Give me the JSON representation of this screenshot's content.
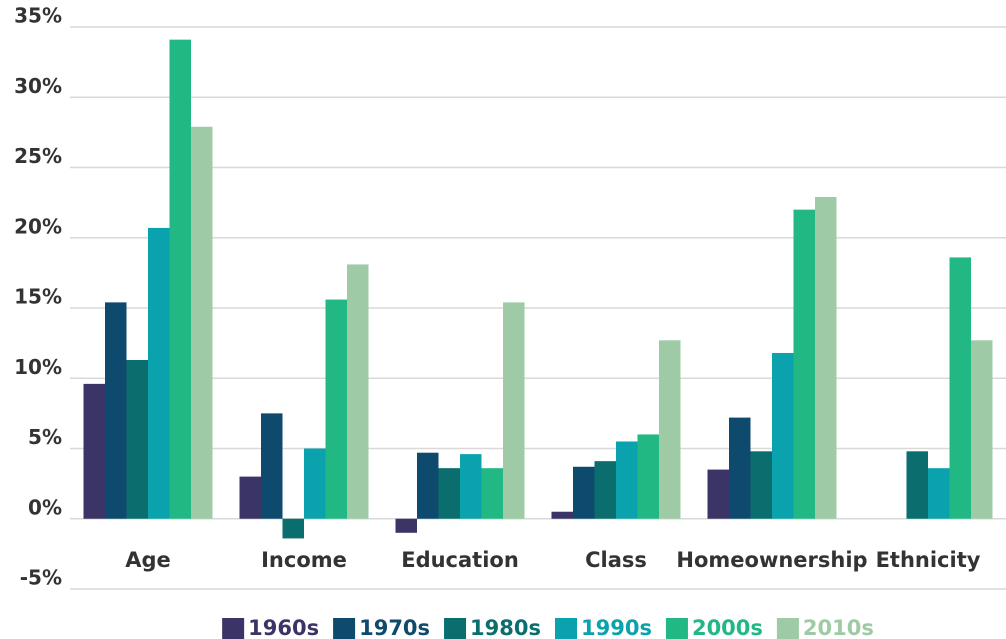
{
  "chart_data": {
    "type": "bar",
    "categories": [
      "Age",
      "Income",
      "Education",
      "Class",
      "Homeownership",
      "Ethnicity"
    ],
    "series": [
      {
        "name": "1960s",
        "color": "#3a3566",
        "values": [
          9.6,
          3.0,
          -1.0,
          0.5,
          3.5,
          null
        ]
      },
      {
        "name": "1970s",
        "color": "#0e4a6e",
        "values": [
          15.4,
          7.5,
          4.7,
          3.7,
          7.2,
          null
        ]
      },
      {
        "name": "1980s",
        "color": "#0b6e6e",
        "values": [
          11.3,
          -1.4,
          3.6,
          4.1,
          4.8,
          4.8
        ]
      },
      {
        "name": "1990s",
        "color": "#0aa3ad",
        "values": [
          20.7,
          5.0,
          4.6,
          5.5,
          11.8,
          3.6
        ]
      },
      {
        "name": "2000s",
        "color": "#22b884",
        "values": [
          34.1,
          15.6,
          3.6,
          6.0,
          22.0,
          18.6
        ]
      },
      {
        "name": "2010s",
        "color": "#9ecba5",
        "values": [
          27.9,
          18.1,
          15.4,
          12.7,
          22.9,
          12.7
        ]
      }
    ],
    "ylim": [
      -5,
      35
    ],
    "yticks": [
      {
        "value": -5,
        "label": "-5%"
      },
      {
        "value": 0,
        "label": "0%"
      },
      {
        "value": 5,
        "label": "5%"
      },
      {
        "value": 10,
        "label": "10%"
      },
      {
        "value": 15,
        "label": "15%"
      },
      {
        "value": 20,
        "label": "20%"
      },
      {
        "value": 25,
        "label": "25%"
      },
      {
        "value": 30,
        "label": "30%"
      },
      {
        "value": 35,
        "label": "35%"
      }
    ],
    "grid": true,
    "legend": "bottom"
  }
}
